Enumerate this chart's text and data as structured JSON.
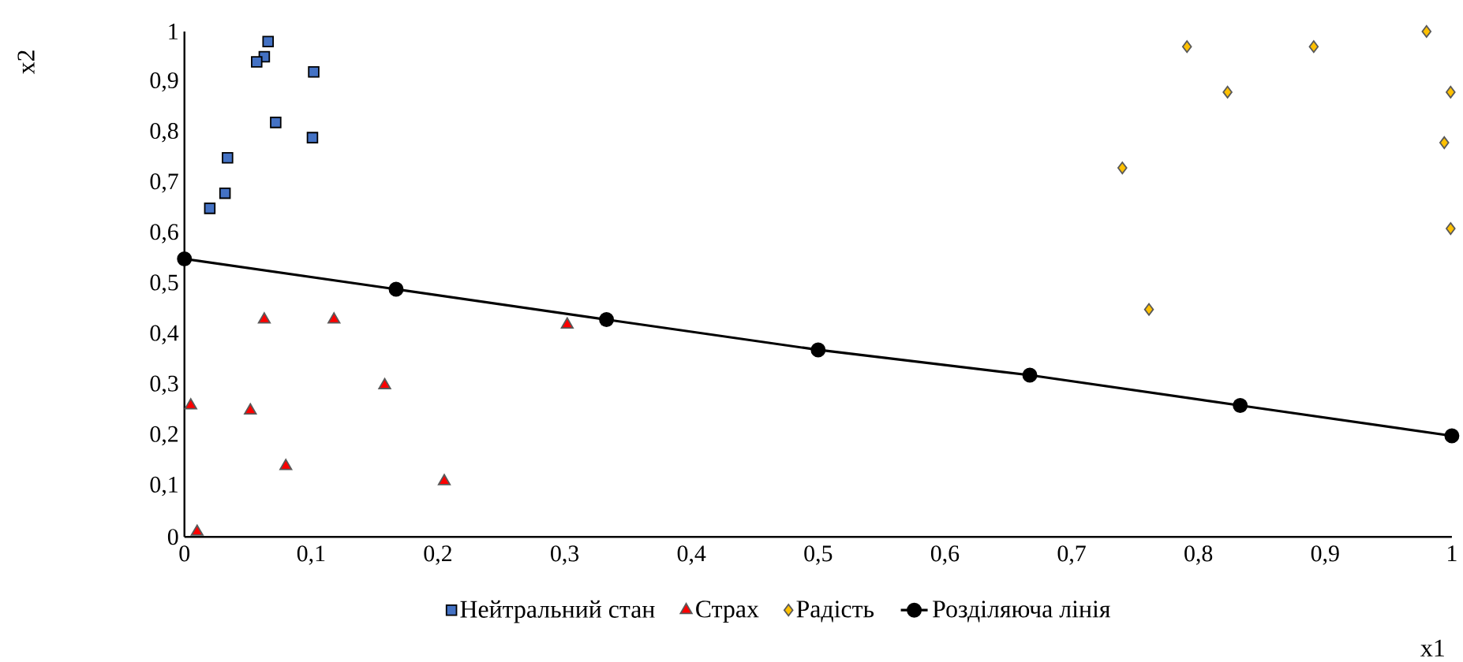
{
  "chart_data": {
    "type": "scatter",
    "xlabel": "x1",
    "ylabel": "x2",
    "xlim": [
      0,
      1
    ],
    "ylim": [
      0,
      1
    ],
    "xticks": [
      0,
      {
        "value": 0.1,
        "label": "0,1"
      },
      {
        "value": 0.2,
        "label": "0,2"
      },
      {
        "value": 0.3,
        "label": "0,3"
      },
      {
        "value": 0.4,
        "label": "0,4"
      },
      {
        "value": 0.5,
        "label": "0,5"
      },
      {
        "value": 0.6,
        "label": "0,6"
      },
      {
        "value": 0.7,
        "label": "0,7"
      },
      {
        "value": 0.8,
        "label": "0,8"
      },
      {
        "value": 0.9,
        "label": "0,9"
      },
      1
    ],
    "yticks": [
      0,
      {
        "value": 0.1,
        "label": "0,1"
      },
      {
        "value": 0.2,
        "label": "0,2"
      },
      {
        "value": 0.3,
        "label": "0,3"
      },
      {
        "value": 0.4,
        "label": "0,4"
      },
      {
        "value": 0.5,
        "label": "0,5"
      },
      {
        "value": 0.6,
        "label": "0,6"
      },
      {
        "value": 0.7,
        "label": "0,7"
      },
      {
        "value": 0.8,
        "label": "0,8"
      },
      {
        "value": 0.9,
        "label": "0,9"
      },
      1
    ],
    "legend": "bottom",
    "series": [
      {
        "name": "Нейтральний стан",
        "color": "#4472c4",
        "marker": "square",
        "x": [
          0.066,
          0.063,
          0.057,
          0.102,
          0.072,
          0.101,
          0.034,
          0.032,
          0.02
        ],
        "values": [
          0.98,
          0.95,
          0.94,
          0.92,
          0.82,
          0.79,
          0.75,
          0.68,
          0.65
        ]
      },
      {
        "name": "Страх",
        "color": "#ff0000",
        "marker": "triangle",
        "x": [
          0.063,
          0.118,
          0.302,
          0.158,
          0.005,
          0.052,
          0.08,
          0.205,
          0.01
        ],
        "values": [
          0.43,
          0.43,
          0.42,
          0.3,
          0.26,
          0.25,
          0.14,
          0.11,
          0.01
        ]
      },
      {
        "name": "Радість",
        "color": "#ffc000",
        "marker": "diamond",
        "x": [
          0.791,
          0.891,
          0.98,
          0.823,
          0.999,
          0.994,
          0.999,
          0.74,
          0.761
        ],
        "values": [
          0.97,
          0.97,
          1.0,
          0.88,
          0.88,
          0.78,
          0.61,
          0.73,
          0.45
        ]
      },
      {
        "name": "Розділяюча лінія",
        "type": "line",
        "color": "#000000",
        "marker": "circle",
        "line_style": "solid",
        "x": [
          0,
          0.167,
          0.333,
          0.5,
          0.667,
          0.833,
          1
        ],
        "values": [
          0.55,
          0.49,
          0.43,
          0.37,
          0.32,
          0.26,
          0.2
        ]
      }
    ]
  }
}
